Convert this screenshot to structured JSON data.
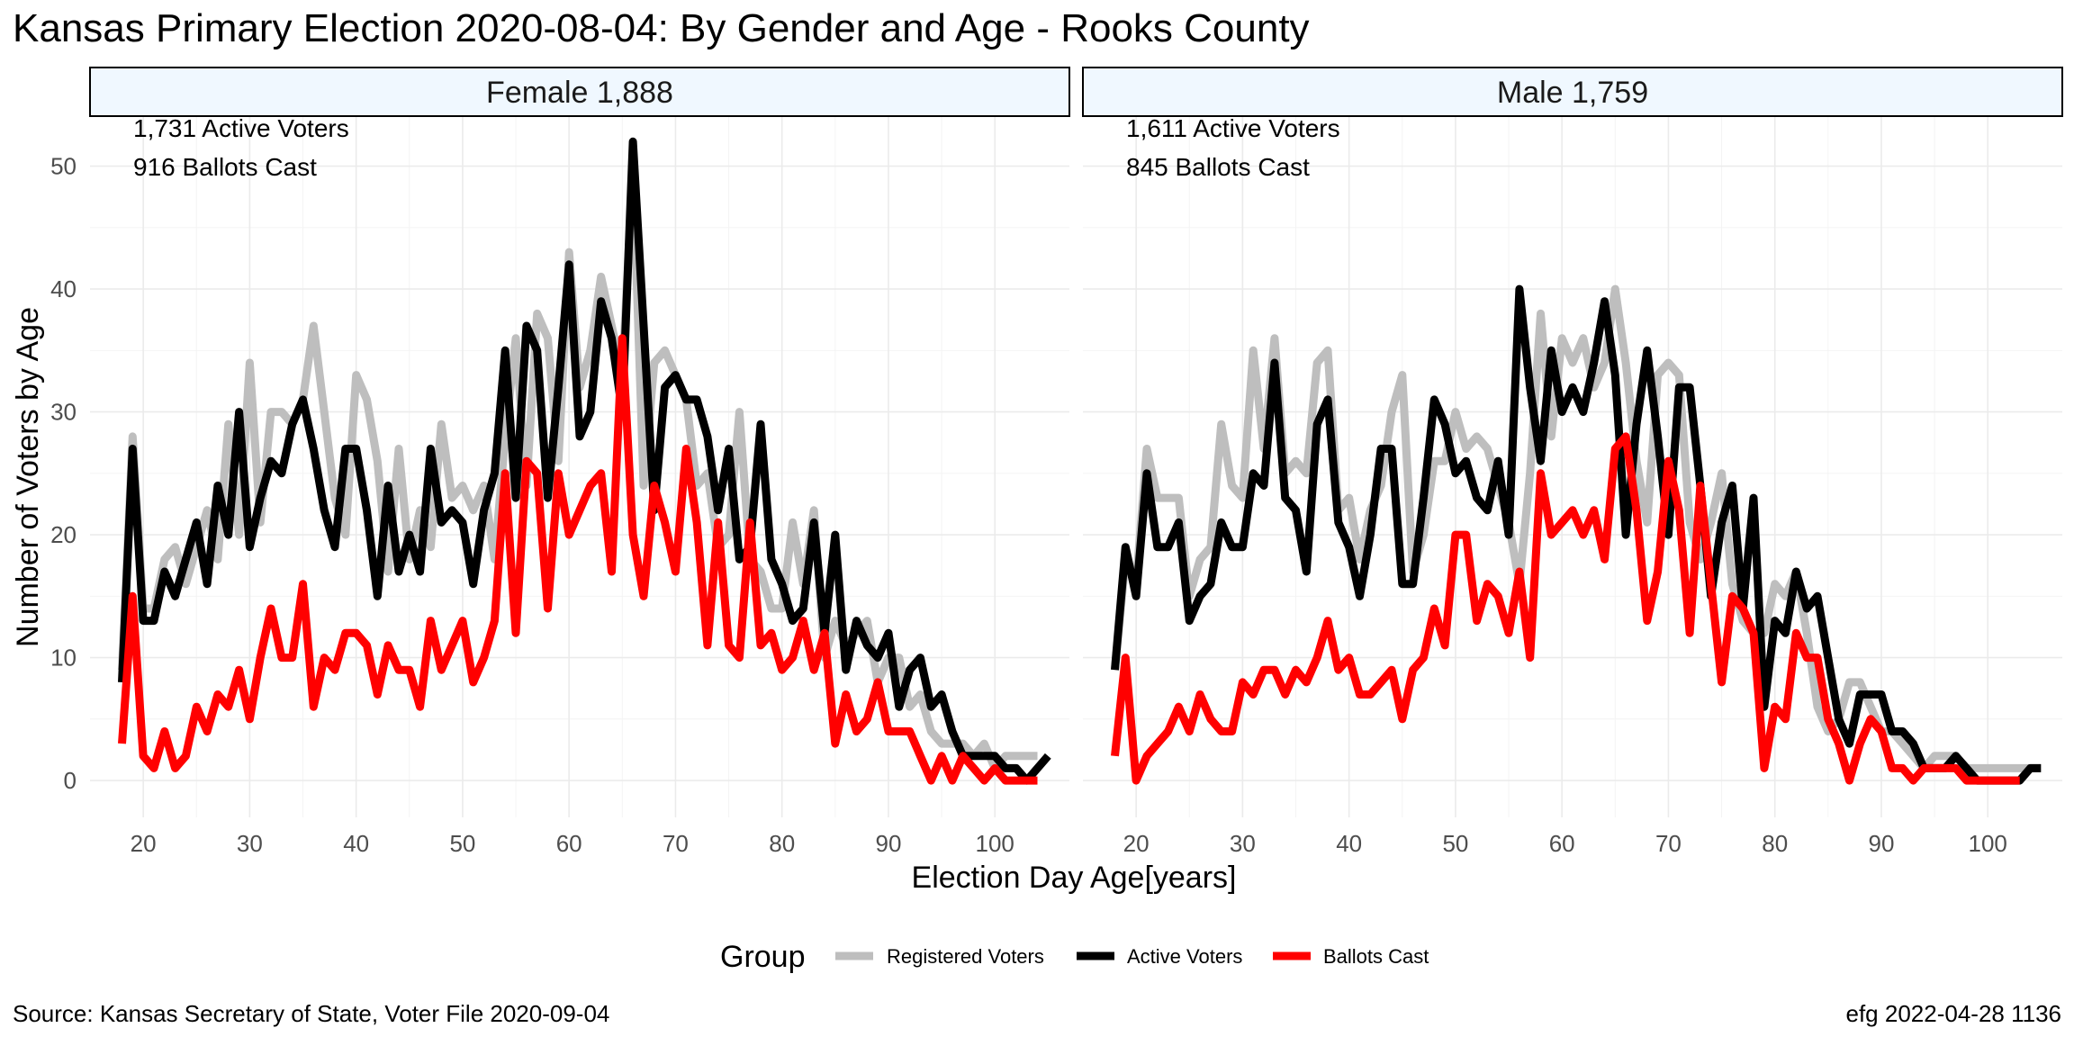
{
  "title": "Kansas Primary Election 2020-08-04:  By Gender and Age - Rooks County",
  "caption_left": "Source:  Kansas Secretary of State, Voter File  2020-09-04",
  "caption_right": "efg 2022-04-28 1136",
  "colors": {
    "registered": "#bebebe",
    "active": "#000000",
    "ballots": "#ff0000",
    "strip_fill": "#f0f8ff"
  },
  "chart_data": {
    "type": "line",
    "xlabel": "Election Day Age[years]",
    "ylabel": "Number of Voters by Age",
    "xlim": [
      15,
      107
    ],
    "ylim": [
      -3,
      54
    ],
    "x_ticks": [
      20,
      30,
      40,
      50,
      60,
      70,
      80,
      90,
      100
    ],
    "y_ticks": [
      0,
      10,
      20,
      30,
      40,
      50
    ],
    "grid": true,
    "legend": {
      "position": "bottom",
      "title": "Group",
      "entries": [
        "Registered Voters",
        "Active Voters",
        "Ballots Cast"
      ]
    },
    "panels": [
      {
        "label": "Female 1,888",
        "annotation_1": "1,731 Active Voters",
        "annotation_2": "916 Ballots Cast",
        "x_start": 18,
        "series": [
          {
            "name": "Registered Voters",
            "values": [
              9,
              28,
              14,
              14,
              18,
              19,
              16,
              19,
              22,
              18,
              29,
              20,
              34,
              21,
              30,
              30,
              29,
              31,
              37,
              30,
              23,
              20,
              33,
              31,
              26,
              17,
              27,
              18,
              22,
              19,
              29,
              23,
              24,
              22,
              24,
              18,
              28,
              36,
              24,
              38,
              36,
              26,
              43,
              32,
              35,
              41,
              37,
              33,
              50,
              24,
              34,
              35,
              33,
              31,
              24,
              25,
              19,
              20,
              30,
              18,
              17,
              14,
              14,
              21,
              16,
              22,
              10,
              13,
              11,
              12,
              13,
              8,
              10,
              10,
              6,
              7,
              4,
              3,
              3,
              3,
              2,
              3,
              1,
              2,
              2,
              2,
              2
            ]
          },
          {
            "name": "Active Voters",
            "values": [
              8,
              27,
              13,
              13,
              17,
              15,
              18,
              21,
              16,
              24,
              20,
              30,
              19,
              23,
              26,
              25,
              29,
              31,
              27,
              22,
              19,
              27,
              27,
              22,
              15,
              24,
              17,
              20,
              17,
              27,
              21,
              22,
              21,
              16,
              22,
              25,
              35,
              23,
              37,
              35,
              23,
              32,
              42,
              28,
              30,
              39,
              36,
              30,
              52,
              37,
              22,
              32,
              33,
              31,
              31,
              28,
              22,
              27,
              18,
              19,
              29,
              18,
              16,
              13,
              14,
              21,
              12,
              20,
              9,
              13,
              11,
              10,
              12,
              6,
              9,
              10,
              6,
              7,
              4,
              2,
              2,
              2,
              2,
              1,
              1,
              0,
              1,
              2
            ]
          },
          {
            "name": "Ballots Cast",
            "values": [
              3,
              15,
              2,
              1,
              4,
              1,
              2,
              6,
              4,
              7,
              6,
              9,
              5,
              10,
              14,
              10,
              10,
              16,
              6,
              10,
              9,
              12,
              12,
              11,
              7,
              11,
              9,
              9,
              6,
              13,
              9,
              11,
              13,
              8,
              10,
              13,
              25,
              12,
              26,
              25,
              14,
              25,
              20,
              22,
              24,
              25,
              17,
              36,
              20,
              15,
              24,
              21,
              17,
              27,
              21,
              11,
              21,
              11,
              10,
              21,
              11,
              12,
              9,
              10,
              13,
              9,
              12,
              3,
              7,
              4,
              5,
              8,
              4,
              4,
              4,
              2,
              0,
              2,
              0,
              2,
              1,
              0,
              1,
              0,
              0,
              0,
              0
            ]
          }
        ]
      },
      {
        "label": "Male 1,759",
        "annotation_1": "1,611 Active Voters",
        "annotation_2": "845 Ballots Cast",
        "x_start": 18,
        "series": [
          {
            "name": "Registered Voters",
            "values": [
              9,
              18,
              16,
              27,
              23,
              23,
              23,
              15,
              18,
              19,
              29,
              24,
              23,
              35,
              27,
              36,
              25,
              26,
              25,
              34,
              35,
              22,
              23,
              18,
              22,
              24,
              30,
              33,
              17,
              20,
              26,
              26,
              30,
              27,
              28,
              27,
              24,
              21,
              16,
              25,
              38,
              28,
              36,
              34,
              36,
              32,
              34,
              40,
              34,
              26,
              21,
              33,
              34,
              33,
              21,
              18,
              21,
              25,
              16,
              13,
              12,
              12,
              16,
              15,
              17,
              12,
              6,
              4,
              5,
              8,
              8,
              6,
              4,
              4,
              3,
              2,
              1,
              2,
              2,
              2,
              1,
              1,
              1,
              1,
              1,
              1,
              1,
              1
            ]
          },
          {
            "name": "Active Voters",
            "values": [
              9,
              19,
              15,
              25,
              19,
              19,
              21,
              13,
              15,
              16,
              21,
              19,
              19,
              25,
              24,
              34,
              23,
              22,
              17,
              29,
              31,
              21,
              19,
              15,
              20,
              27,
              27,
              16,
              16,
              23,
              31,
              29,
              25,
              26,
              23,
              22,
              26,
              20,
              40,
              32,
              26,
              35,
              30,
              32,
              30,
              34,
              39,
              33,
              20,
              29,
              35,
              28,
              20,
              32,
              32,
              24,
              15,
              21,
              24,
              14,
              23,
              6,
              13,
              12,
              17,
              14,
              15,
              10,
              5,
              3,
              7,
              7,
              7,
              4,
              4,
              3,
              1,
              1,
              1,
              2,
              1,
              0,
              0,
              0,
              0,
              0,
              1,
              1
            ]
          },
          {
            "name": "Ballots Cast",
            "values": [
              2,
              10,
              0,
              2,
              3,
              4,
              6,
              4,
              7,
              5,
              4,
              4,
              8,
              7,
              9,
              9,
              7,
              9,
              8,
              10,
              13,
              9,
              10,
              7,
              7,
              8,
              9,
              5,
              9,
              10,
              14,
              11,
              20,
              20,
              13,
              16,
              15,
              12,
              17,
              10,
              25,
              20,
              21,
              22,
              20,
              22,
              18,
              27,
              28,
              22,
              13,
              17,
              26,
              22,
              12,
              24,
              16,
              8,
              15,
              14,
              12,
              1,
              6,
              5,
              12,
              10,
              10,
              5,
              3,
              0,
              3,
              5,
              4,
              1,
              1,
              0,
              1,
              1,
              1,
              1,
              0,
              0,
              0,
              0,
              0,
              0
            ]
          }
        ]
      }
    ]
  }
}
